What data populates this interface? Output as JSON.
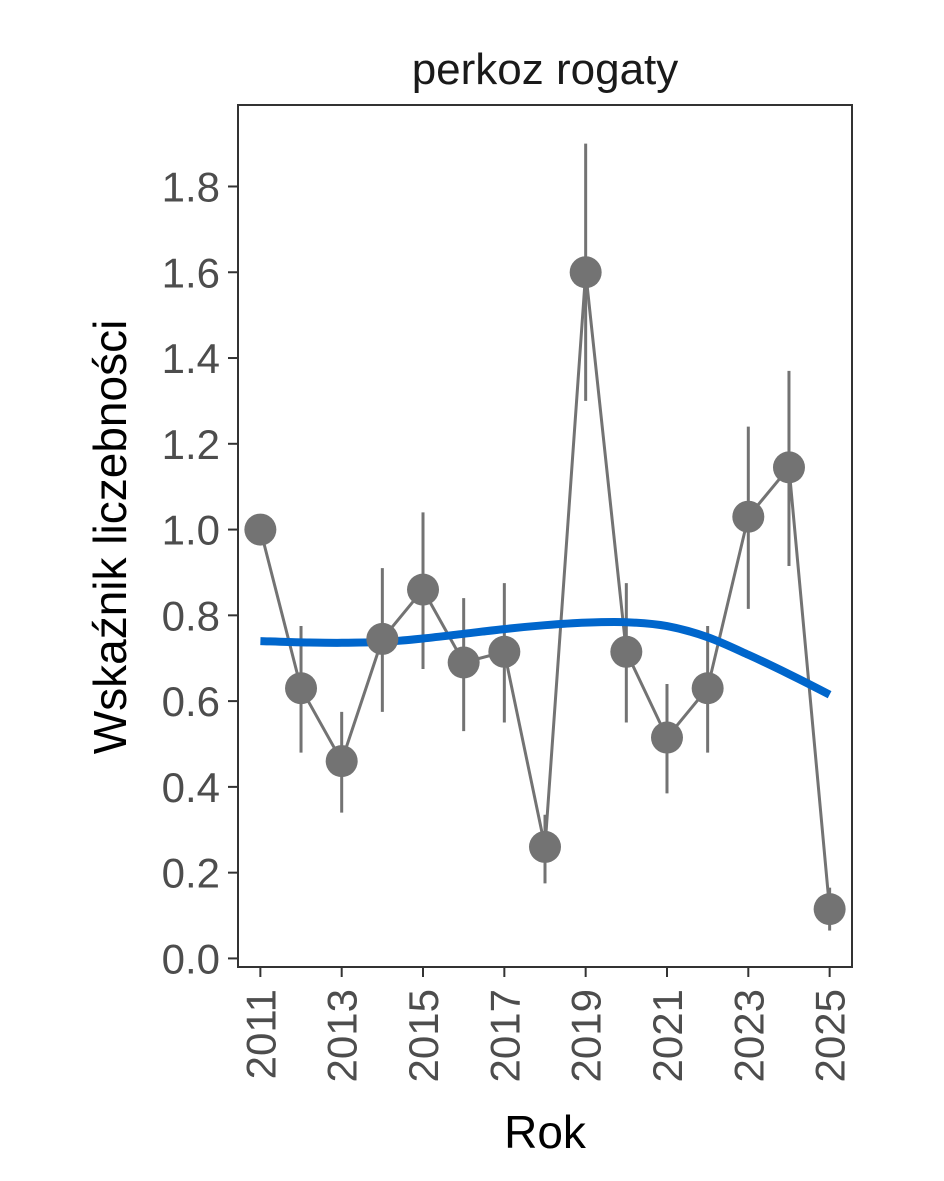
{
  "chart_data": {
    "type": "line",
    "title": "perkoz rogaty",
    "xlabel": "Rok",
    "ylabel": "Wskaźnik liczebności",
    "xlim": [
      2010.45,
      2025.55
    ],
    "ylim": [
      -0.02,
      1.99
    ],
    "x_ticks": [
      2011,
      2013,
      2015,
      2017,
      2019,
      2021,
      2023,
      2025
    ],
    "y_ticks": [
      0.0,
      0.2,
      0.4,
      0.6,
      0.8,
      1.0,
      1.2,
      1.4,
      1.6,
      1.8
    ],
    "y_tick_labels": [
      "0.0",
      "0.2",
      "0.4",
      "0.6",
      "0.8",
      "1.0",
      "1.2",
      "1.4",
      "1.6",
      "1.8"
    ],
    "grid": false,
    "series": [
      {
        "kind": "points-with-errorbars",
        "color": "#737373",
        "x": [
          2011,
          2012,
          2013,
          2014,
          2015,
          2016,
          2017,
          2018,
          2019,
          2020,
          2021,
          2022,
          2023,
          2024,
          2025
        ],
        "y": [
          1.0,
          0.63,
          0.46,
          0.745,
          0.86,
          0.69,
          0.715,
          0.26,
          1.6,
          0.715,
          0.515,
          0.63,
          1.03,
          1.145,
          0.115
        ],
        "lower": [
          1.0,
          0.48,
          0.34,
          0.575,
          0.675,
          0.53,
          0.55,
          0.175,
          1.3,
          0.55,
          0.385,
          0.48,
          0.815,
          0.915,
          0.065
        ],
        "upper": [
          1.0,
          0.775,
          0.575,
          0.91,
          1.04,
          0.84,
          0.875,
          0.335,
          1.9,
          0.875,
          0.64,
          0.775,
          1.24,
          1.37,
          0.165
        ]
      },
      {
        "kind": "smooth-trend",
        "color": "#0066cc",
        "x": [
          2011,
          2012,
          2013,
          2014,
          2015,
          2016,
          2017,
          2018,
          2019,
          2020,
          2021,
          2022,
          2023,
          2024,
          2025
        ],
        "y": [
          0.74,
          0.737,
          0.736,
          0.738,
          0.746,
          0.757,
          0.768,
          0.777,
          0.783,
          0.784,
          0.775,
          0.749,
          0.708,
          0.663,
          0.615
        ]
      }
    ]
  }
}
